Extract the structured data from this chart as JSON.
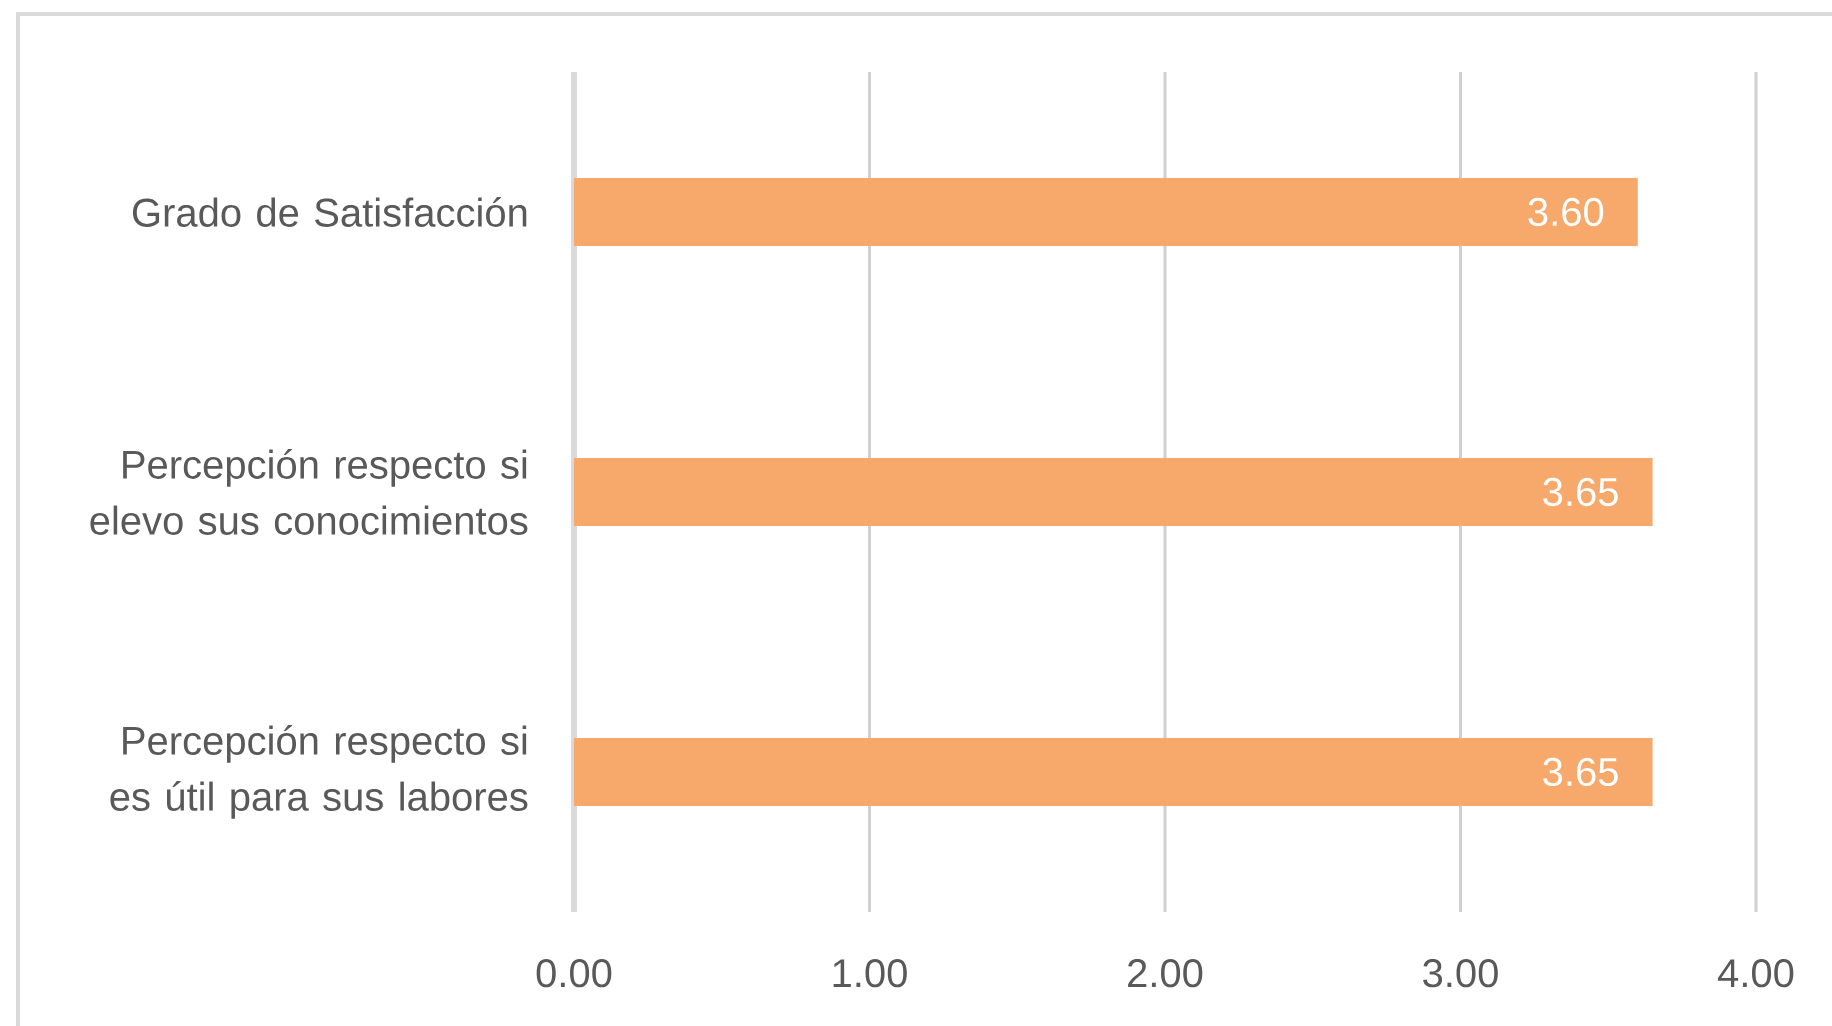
{
  "chart_data": {
    "type": "bar",
    "orientation": "horizontal",
    "categories": [
      "Grado de Satisfacción",
      "Percepción respecto si elevo sus conocimientos",
      "Percepción respecto si es útil para sus labores"
    ],
    "values": [
      3.6,
      3.65,
      3.65
    ],
    "value_labels": [
      "3.60",
      "3.65",
      "3.65"
    ],
    "color": "#f6a96a",
    "xlim": [
      0,
      4
    ],
    "xticks": [
      {
        "value": 0,
        "label": "0.00"
      },
      {
        "value": 1,
        "label": "1.00"
      },
      {
        "value": 2,
        "label": "2.00"
      },
      {
        "value": 3,
        "label": "3.00"
      },
      {
        "value": 4,
        "label": "4.00"
      }
    ],
    "grid": "x"
  }
}
